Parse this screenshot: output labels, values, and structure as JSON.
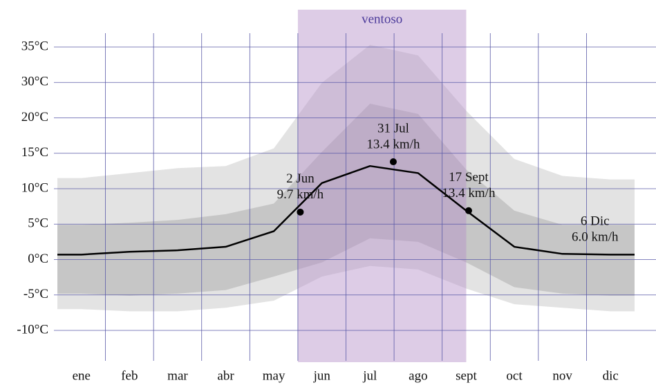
{
  "chart_data": {
    "type": "line",
    "categories": [
      "ene",
      "feb",
      "mar",
      "abr",
      "may",
      "jun",
      "jul",
      "ago",
      "sept",
      "oct",
      "nov",
      "dic"
    ],
    "ylim": [
      -10,
      35
    ],
    "yticks": [
      {
        "value": 35,
        "label": "35°C"
      },
      {
        "value": 30,
        "label": "30°C"
      },
      {
        "value": 20,
        "label": "20°C"
      },
      {
        "value": 15,
        "label": "15°C"
      },
      {
        "value": 10,
        "label": "10°C"
      },
      {
        "value": 5,
        "label": "5°C"
      },
      {
        "value": 0,
        "label": "0°C"
      },
      {
        "value": -5,
        "label": "-5°C"
      },
      {
        "value": -10,
        "label": "-10°C"
      }
    ],
    "grid": true,
    "bands": [
      {
        "color": "#e3e3e3",
        "upper": [
          11.5,
          12.2,
          12.9,
          13.2,
          15.7,
          29.9,
          35.3,
          33.8,
          22.0,
          14.2,
          11.8,
          11.3
        ],
        "lower": [
          -7.0,
          -7.3,
          -7.3,
          -6.8,
          -5.8,
          -2.4,
          -0.9,
          -1.4,
          -4.1,
          -6.3,
          -6.8,
          -7.3
        ]
      },
      {
        "color": "#c6c6c6",
        "upper": [
          4.9,
          5.2,
          5.6,
          6.4,
          7.9,
          15.2,
          24.0,
          21.1,
          12.7,
          6.9,
          4.9,
          4.9
        ],
        "lower": [
          -4.8,
          -5.1,
          -4.8,
          -4.3,
          -2.4,
          -0.4,
          3.0,
          2.5,
          -0.4,
          -3.9,
          -4.8,
          -5.1
        ]
      }
    ],
    "series": [
      {
        "color": "#000000",
        "values": [
          0.7,
          1.1,
          1.3,
          1.8,
          4.0,
          10.8,
          13.2,
          12.2,
          6.9,
          1.8,
          0.8,
          0.7
        ]
      }
    ],
    "highlight": {
      "label": "ventoso",
      "from": "jun",
      "to": "sept",
      "color": "#b48fc8"
    },
    "annotations": [
      {
        "date": "2 Jun",
        "text": "9.7 km/h",
        "value": 6.7
      },
      {
        "date": "31 Jul",
        "text": "13.4 km/h",
        "value": 13.8
      },
      {
        "date": "17 Sept",
        "text": "13.4 km/h",
        "value": 6.9
      },
      {
        "date": "6 Dic",
        "text": "6.0 km/h"
      }
    ]
  }
}
